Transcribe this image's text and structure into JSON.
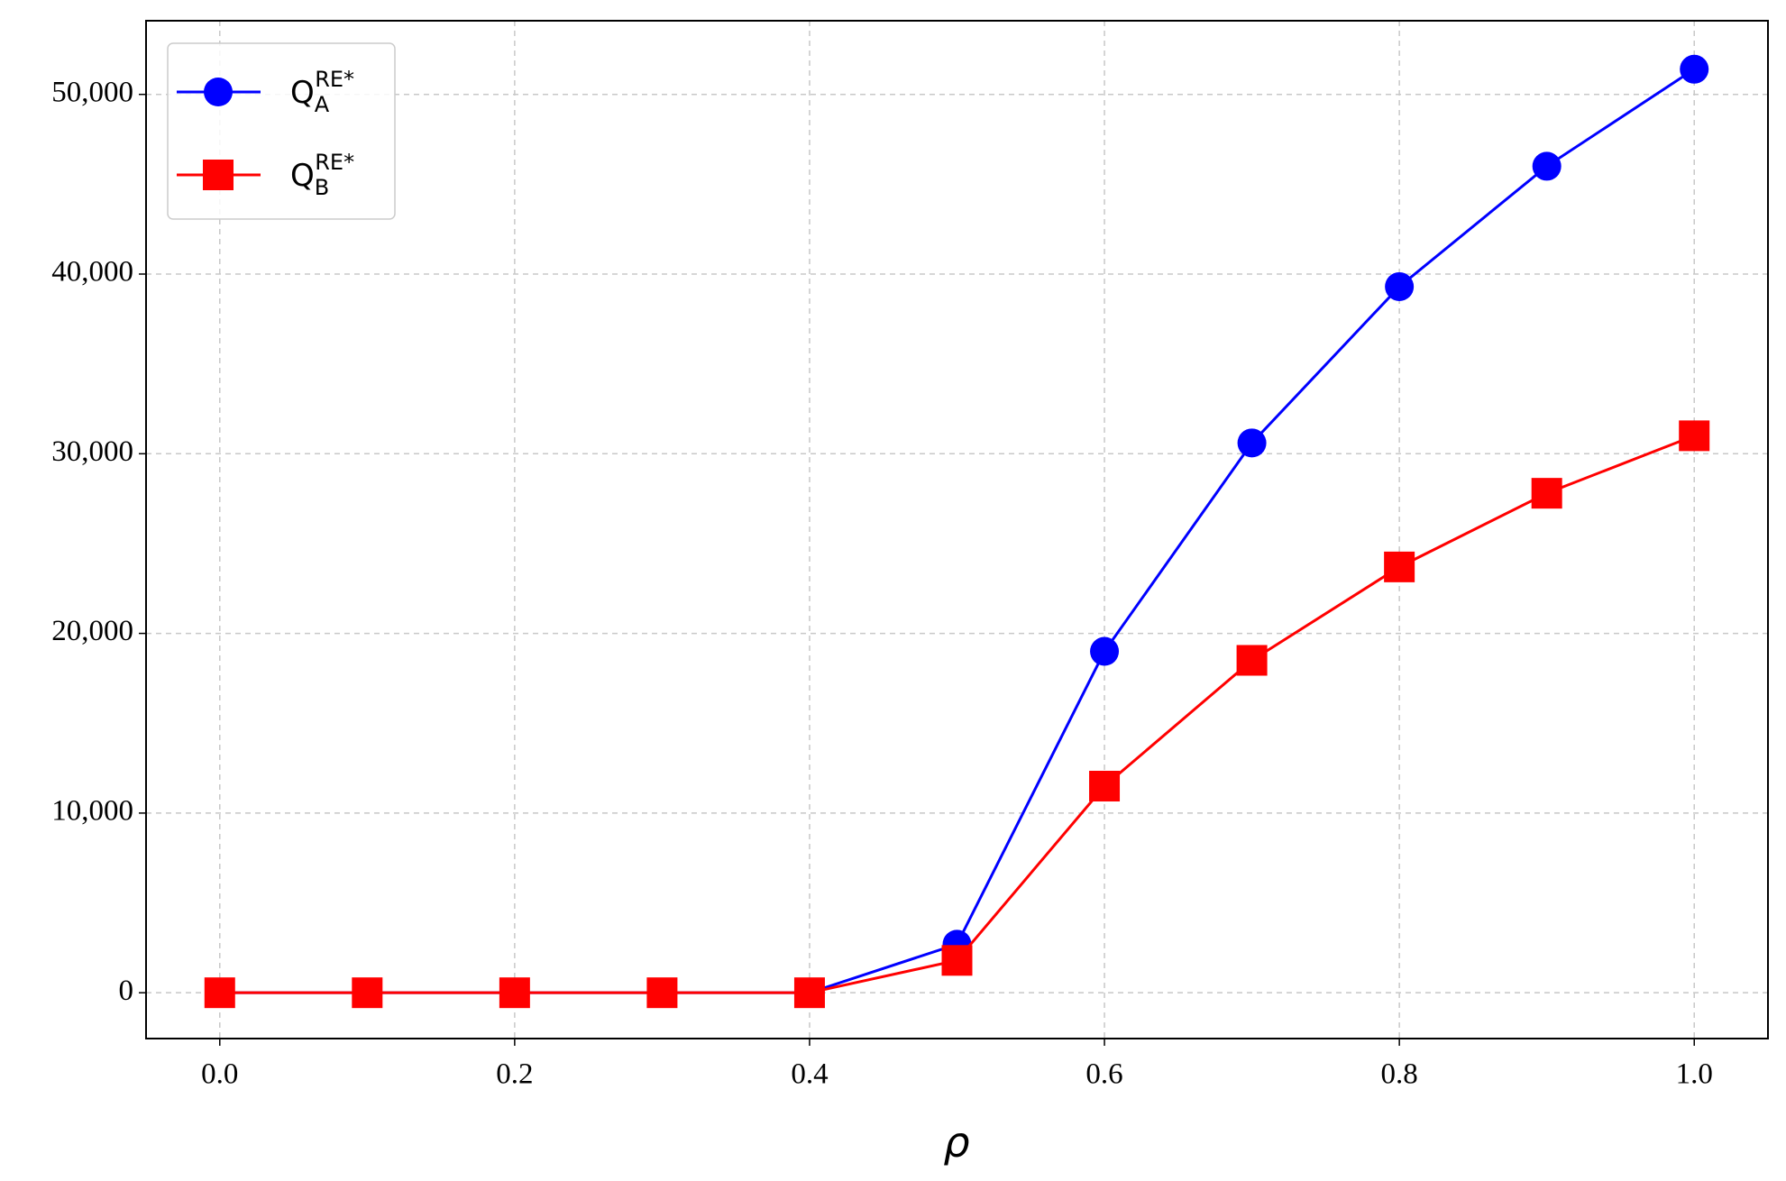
{
  "chart_data": {
    "type": "line",
    "x": [
      0,
      0.1,
      0.2,
      0.3,
      0.4,
      0.5,
      0.6,
      0.7,
      0.8,
      0.9,
      1.0
    ],
    "series": [
      {
        "name": "Q_A^{RE*}",
        "color": "#0000ff",
        "marker": "circle",
        "values": [
          0,
          0,
          0,
          0,
          0,
          2700,
          19000,
          30600,
          39300,
          46000,
          51400
        ]
      },
      {
        "name": "Q_B^{RE*}",
        "color": "#ff0000",
        "marker": "square",
        "values": [
          0,
          0,
          0,
          0,
          0,
          1800,
          11500,
          18500,
          23700,
          27800,
          31000
        ]
      }
    ],
    "xlabel": "ρ",
    "xlim": [
      -0.05,
      1.05
    ],
    "ylim": [
      -2550,
      54100
    ],
    "xticks": [
      {
        "value": 0,
        "label": "0.0"
      },
      0.2,
      0.4,
      0.6,
      0.8,
      {
        "value": 1,
        "label": "1.0"
      }
    ],
    "yticks": [
      0,
      {
        "value": 10000,
        "label": "10,000"
      },
      {
        "value": 20000,
        "label": "20,000"
      },
      {
        "value": 30000,
        "label": "30,000"
      },
      {
        "value": 40000,
        "label": "40,000"
      },
      {
        "value": 50000,
        "label": "50,000"
      }
    ],
    "grid": true,
    "legend": "upper left"
  }
}
